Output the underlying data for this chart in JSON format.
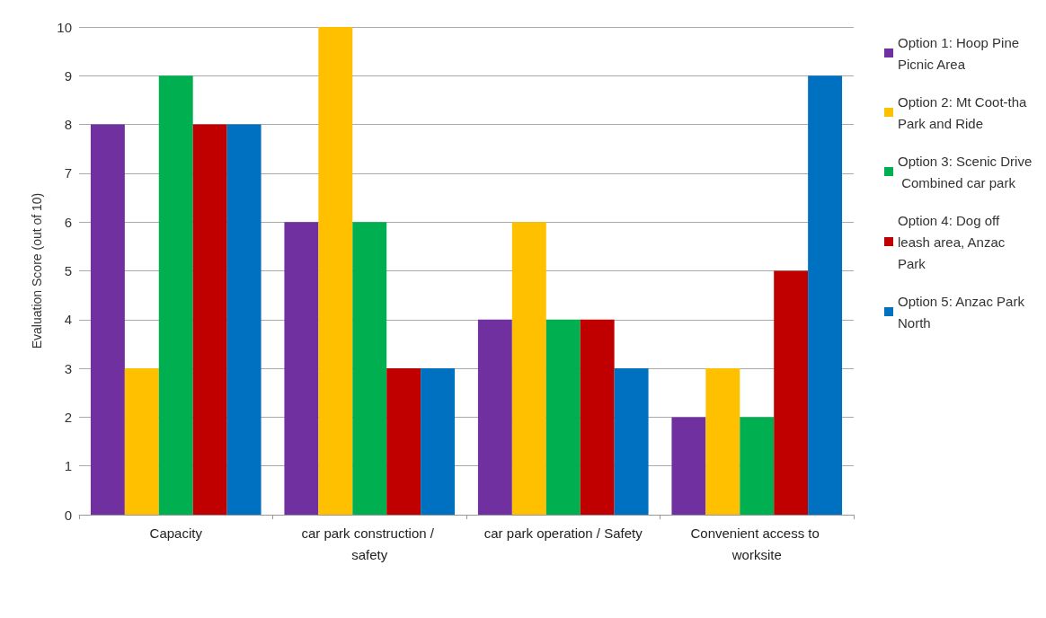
{
  "chart_data": {
    "type": "bar",
    "ylabel": "Evaluation Score (out of 10)",
    "categories": [
      "Capacity",
      "car park construction / safety",
      "car park operation / Safety",
      "Convenient access to worksite"
    ],
    "series": [
      {
        "name": "Option 1: Hoop Pine Picnic Area",
        "color": "#7030a0",
        "values": [
          8,
          6,
          4,
          2
        ]
      },
      {
        "name": "Option 2: Mt Coot-tha Park and Ride",
        "color": "#ffc000",
        "values": [
          3,
          10,
          6,
          3
        ]
      },
      {
        "name": "Option 3: Scenic Drive Combined car park",
        "color": "#00b050",
        "values": [
          9,
          6,
          4,
          2
        ]
      },
      {
        "name": "Option 4: Dog off leash area, Anzac Park",
        "color": "#c00000",
        "values": [
          8,
          3,
          4,
          5
        ]
      },
      {
        "name": "Option 5: Anzac Park North",
        "color": "#0070c0",
        "values": [
          8,
          3,
          3,
          9
        ]
      }
    ],
    "ylim": [
      0,
      10
    ],
    "yticks": [
      0,
      1,
      2,
      3,
      4,
      5,
      6,
      7,
      8,
      9,
      10
    ],
    "grid": "y",
    "legend": "right"
  }
}
